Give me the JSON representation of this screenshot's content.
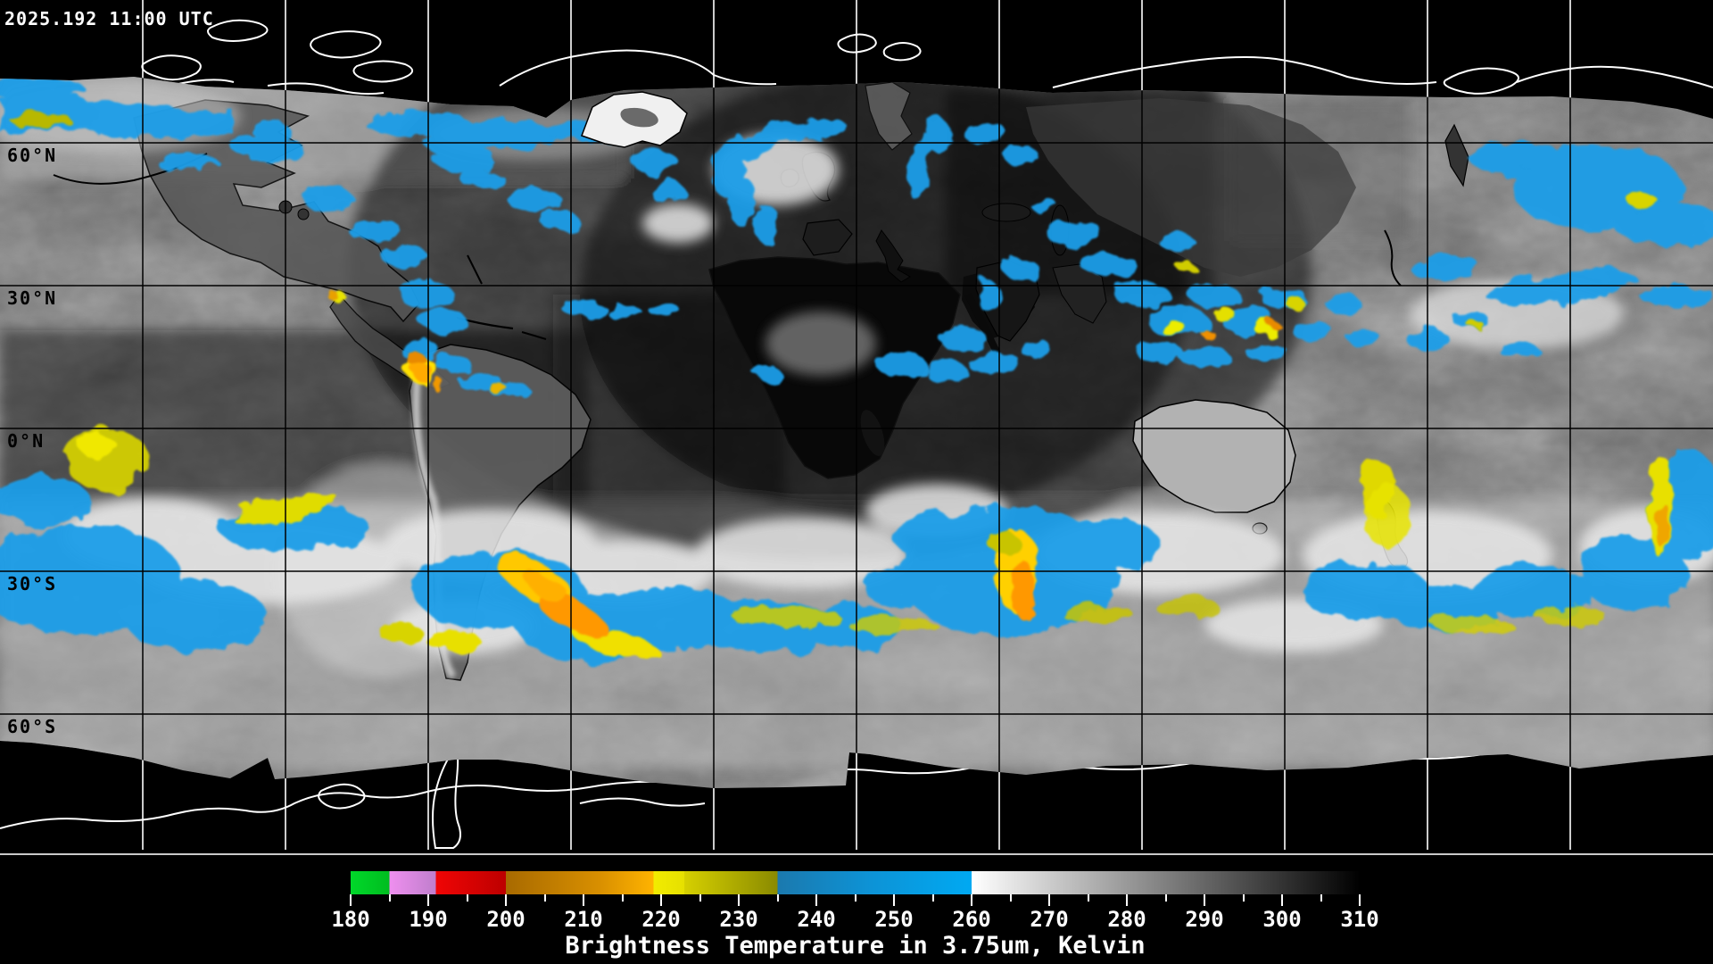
{
  "header": {
    "timestamp": "2025.192 11:00 UTC"
  },
  "map": {
    "latitude_labels": [
      "60°N",
      "30°N",
      "0°N",
      "30°S",
      "60°S"
    ],
    "grid_interval_degrees": 30,
    "line_colors": {
      "grid_over_data": "#000000",
      "grid_over_void": "#ffffff",
      "coast_over_data": "#000000",
      "coast_over_void": "#ffffff"
    }
  },
  "chart_data": {
    "type": "heatmap",
    "title": "Brightness Temperature in 3.75um, Kelvin",
    "timestamp": "2025.192 11:00 UTC",
    "y_axis": {
      "tick_labels": [
        "60°N",
        "30°N",
        "0°N",
        "30°S",
        "60°S"
      ]
    },
    "colorbar": {
      "min": 180,
      "max": 310,
      "unit": "Kelvin",
      "major_ticks": [
        180,
        190,
        200,
        210,
        220,
        230,
        240,
        250,
        260,
        270,
        280,
        290,
        300,
        310
      ],
      "minor_tick_step": 5,
      "segments": [
        {
          "from": 180,
          "to": 185,
          "color_start": "#00d82a",
          "color_end": "#00bd1f"
        },
        {
          "from": 185,
          "to": 191,
          "color_start": "#ef8fef",
          "color_end": "#bf7ecc"
        },
        {
          "from": 191,
          "to": 200,
          "color_start": "#f00505",
          "color_end": "#bd0000"
        },
        {
          "from": 200,
          "to": 212,
          "color_start": "#a86a00",
          "color_end": "#d88f00"
        },
        {
          "from": 212,
          "to": 219,
          "color_start": "#d88f00",
          "color_end": "#ffb300"
        },
        {
          "from": 219,
          "to": 223,
          "color_start": "#f2ec00",
          "color_end": "#e6e000"
        },
        {
          "from": 223,
          "to": 235,
          "color_start": "#d6d000",
          "color_end": "#8a8a00"
        },
        {
          "from": 235,
          "to": 247,
          "color_start": "#1b79ae",
          "color_end": "#0d93d6"
        },
        {
          "from": 247,
          "to": 260,
          "color_start": "#0d93d6",
          "color_end": "#00a9f2"
        },
        {
          "from": 260,
          "to": 310,
          "color_start": "#ffffff",
          "color_end": "#000000"
        }
      ]
    }
  }
}
